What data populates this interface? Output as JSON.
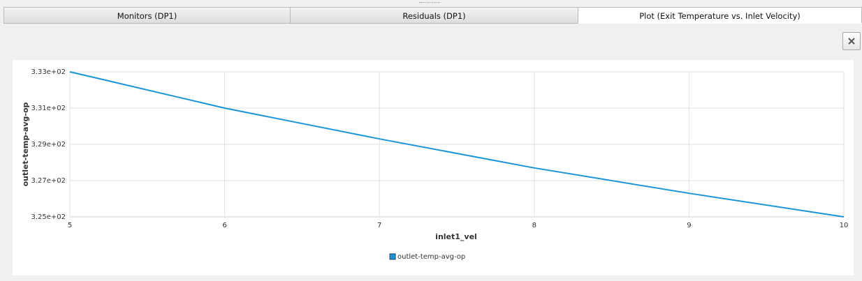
{
  "tabs": [
    "Monitors (DP1)",
    "Residuals (DP1)",
    "Plot (Exit Temperature vs. Inlet Velocity)"
  ],
  "chart_data": {
    "type": "line",
    "x_label": "inlet1_vel",
    "y_label": "outlet-temp-avg-op",
    "x": [
      5,
      6,
      7,
      8,
      9,
      10
    ],
    "series": [
      {
        "name": "outlet-temp-avg-op",
        "color": "#1b95d8",
        "values": [
          333.0,
          331.0,
          329.3,
          327.7,
          326.3,
          325.0
        ]
      }
    ],
    "xlim": [
      5,
      10
    ],
    "xticks": [
      5,
      6,
      7,
      8,
      9,
      10
    ],
    "ylim": [
      325,
      333
    ],
    "yticks": [
      {
        "value": 325,
        "label": "3.25e+02"
      },
      {
        "value": 327,
        "label": "3.27e+02"
      },
      {
        "value": 329,
        "label": "3.29e+02"
      },
      {
        "value": 331,
        "label": "3.31e+02"
      },
      {
        "value": 333,
        "label": "3.33e+02"
      }
    ],
    "grid": true
  }
}
